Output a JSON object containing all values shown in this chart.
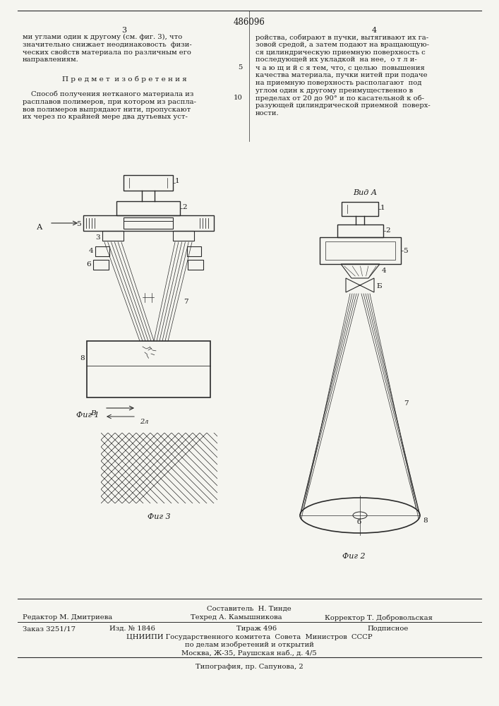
{
  "patent_number": "486096",
  "page_left": "3",
  "page_right": "4",
  "bg_color": "#f5f5f0",
  "text_color": "#1a1a1a",
  "line_color": "#2a2a2a",
  "footer_line1": "Составитель  Н. Тинде",
  "footer_ed": "Редактор М. Дмитриева",
  "footer_tech": "Техред А. Камышникова",
  "footer_corr": "Корректор Т. Добровольская",
  "footer_order": "Заказ 3251/17",
  "footer_izd": "Изд. № 1846",
  "footer_tirazh": "Тираж 496",
  "footer_podp": "Подписное",
  "footer_org": "ЦНИИПИ Государственного комитета  Совета  Министров  СССР",
  "footer_dept": "по делам изобретений и открытий",
  "footer_addr": "Москва, Ж-35, Раушская наб., д. 4/5",
  "footer_print": "Типография, пр. Сапунова, 2"
}
